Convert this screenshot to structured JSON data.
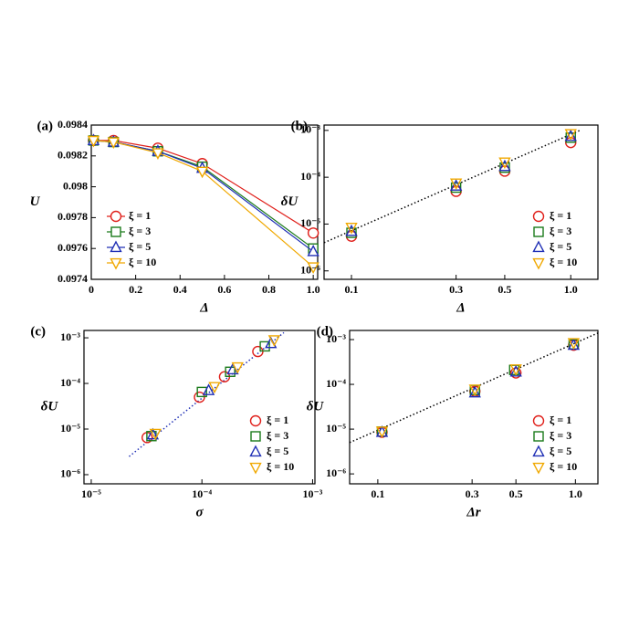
{
  "chart_data": [
    {
      "type": "line",
      "panel_label": "(a)",
      "xlabel": "Δ",
      "ylabel": "U",
      "x": [
        0.01,
        0.1,
        0.3,
        0.5,
        1.0
      ],
      "xlim": [
        0,
        1.02
      ],
      "xticks": [
        0,
        0.2,
        0.4,
        0.6,
        0.8,
        {
          "value": 1,
          "label": "1.0"
        }
      ],
      "ylim": [
        0.0974,
        0.0984
      ],
      "yticks": [
        0.0974,
        0.0976,
        0.0978,
        0.098,
        0.0982,
        0.0984
      ],
      "legend": "lower left",
      "series": [
        {
          "name": "ξ = 1",
          "color": "#e0201b",
          "marker": "circle",
          "values": [
            0.0983,
            0.0983,
            0.09825,
            0.09815,
            0.0977
          ]
        },
        {
          "name": "ξ = 3",
          "color": "#1b7a1b",
          "marker": "square",
          "values": [
            0.0983,
            0.09829,
            0.09823,
            0.09813,
            0.0976
          ]
        },
        {
          "name": "ξ = 5",
          "color": "#1f2fb5",
          "marker": "triangle-up",
          "values": [
            0.0983,
            0.09829,
            0.09823,
            0.09812,
            0.09758
          ]
        },
        {
          "name": "ξ = 10",
          "color": "#f0a800",
          "marker": "triangle-down",
          "values": [
            0.0983,
            0.09829,
            0.09822,
            0.0981,
            0.09748
          ]
        }
      ]
    },
    {
      "type": "scatter",
      "panel_label": "(b)",
      "xlabel": "Δ",
      "ylabel": "δU",
      "xlog": true,
      "ylog": true,
      "xlim": [
        0.075,
        1.33
      ],
      "xticks": [
        0.1,
        0.3,
        0.5,
        {
          "value": 1,
          "label": "1.0"
        }
      ],
      "ylim": [
        6.6e-07,
        0.0013
      ],
      "yticks": [
        {
          "value": 1e-06,
          "label": "10⁻⁶"
        },
        {
          "value": 1e-05,
          "label": "10⁻⁵"
        },
        {
          "value": 0.0001,
          "label": "10⁻⁴"
        },
        {
          "value": 0.001,
          "label": "10⁻³"
        }
      ],
      "legend": "lower right",
      "fit_line": {
        "color": "#000000",
        "x": [
          0.075,
          1.1
        ],
        "values": [
          4e-06,
          0.001
        ]
      },
      "series": [
        {
          "name": "ξ = 1",
          "color": "#e0201b",
          "marker": "circle",
          "x": [
            0.1,
            0.3,
            0.5,
            1.0
          ],
          "values": [
            5.5e-06,
            5e-05,
            0.000135,
            0.00055
          ]
        },
        {
          "name": "ξ = 3",
          "color": "#1b7a1b",
          "marker": "square",
          "x": [
            0.1,
            0.3,
            0.5,
            1.0
          ],
          "values": [
            6.5e-06,
            6e-05,
            0.00016,
            0.0007
          ]
        },
        {
          "name": "ξ = 5",
          "color": "#1f2fb5",
          "marker": "triangle-up",
          "x": [
            0.1,
            0.3,
            0.5,
            1.0
          ],
          "values": [
            7e-06,
            6.5e-05,
            0.00017,
            0.00075
          ]
        },
        {
          "name": "ξ = 10",
          "color": "#f0a800",
          "marker": "triangle-down",
          "x": [
            0.1,
            0.3,
            0.5,
            1.0
          ],
          "values": [
            8.5e-06,
            7.5e-05,
            0.00021,
            0.00085
          ]
        }
      ]
    },
    {
      "type": "scatter",
      "panel_label": "(c)",
      "xlabel": "σ",
      "ylabel": "δU",
      "xlog": true,
      "ylog": true,
      "xlim": [
        8.6e-06,
        0.00105
      ],
      "xticks": [
        {
          "value": 1e-05,
          "label": "10⁻⁵"
        },
        {
          "value": 0.0001,
          "label": "10⁻⁴"
        },
        {
          "value": 0.001,
          "label": "10⁻³"
        }
      ],
      "ylim": [
        6.3e-07,
        0.00145
      ],
      "yticks": [
        {
          "value": 1e-06,
          "label": "10⁻⁶"
        },
        {
          "value": 1e-05,
          "label": "10⁻⁵"
        },
        {
          "value": 0.0001,
          "label": "10⁻⁴"
        },
        {
          "value": 0.001,
          "label": "10⁻³"
        }
      ],
      "legend": "lower right",
      "fit_line": {
        "color": "#1f2fb5",
        "x": [
          2.2e-05,
          0.00055
        ],
        "values": [
          2.5e-06,
          0.0013
        ]
      },
      "series": [
        {
          "name": "ξ = 1",
          "color": "#e0201b",
          "marker": "circle",
          "x": [
            3.2e-05,
            9.5e-05,
            0.00016,
            0.00032
          ],
          "values": [
            6.5e-06,
            5e-05,
            0.00014,
            0.0005
          ]
        },
        {
          "name": "ξ = 3",
          "color": "#1b7a1b",
          "marker": "square",
          "x": [
            3.5e-05,
            0.0001,
            0.00018,
            0.00037
          ],
          "values": [
            7e-06,
            6.5e-05,
            0.00018,
            0.00065
          ]
        },
        {
          "name": "ξ = 5",
          "color": "#1f2fb5",
          "marker": "triangle-up",
          "x": [
            3.6e-05,
            0.000115,
            0.00019,
            0.00042
          ],
          "values": [
            7.5e-06,
            7e-05,
            0.0002,
            0.00075
          ]
        },
        {
          "name": "ξ = 10",
          "color": "#f0a800",
          "marker": "triangle-down",
          "x": [
            3.8e-05,
            0.00013,
            0.00021,
            0.00045
          ],
          "values": [
            8e-06,
            8.5e-05,
            0.00023,
            0.0009
          ]
        }
      ]
    },
    {
      "type": "scatter",
      "panel_label": "(d)",
      "xlabel": "Δr",
      "ylabel": "δU",
      "xlog": true,
      "ylog": true,
      "xlim": [
        0.072,
        1.3
      ],
      "xticks": [
        0.1,
        0.3,
        0.5,
        {
          "value": 1,
          "label": "1.0"
        }
      ],
      "ylim": [
        6e-07,
        0.0016
      ],
      "yticks": [
        {
          "value": 1e-06,
          "label": "10⁻⁶"
        },
        {
          "value": 1e-05,
          "label": "10⁻⁵"
        },
        {
          "value": 0.0001,
          "label": "10⁻⁴"
        },
        {
          "value": 0.001,
          "label": "10⁻³"
        }
      ],
      "legend": "lower right",
      "fit_line": {
        "color": "#000000",
        "x": [
          0.072,
          1.3
        ],
        "values": [
          5e-06,
          0.0014
        ]
      },
      "series": [
        {
          "name": "ξ = 1",
          "color": "#e0201b",
          "marker": "circle",
          "x": [
            0.105,
            0.31,
            0.5,
            0.98
          ],
          "values": [
            8.5e-06,
            7e-05,
            0.00018,
            0.00075
          ]
        },
        {
          "name": "ξ = 3",
          "color": "#1b7a1b",
          "marker": "square",
          "x": [
            0.105,
            0.31,
            0.49,
            0.98
          ],
          "values": [
            8.8e-06,
            7.5e-05,
            0.00021,
            0.00078
          ]
        },
        {
          "name": "ξ = 5",
          "color": "#1f2fb5",
          "marker": "triangle-up",
          "x": [
            0.105,
            0.31,
            0.5,
            0.98
          ],
          "values": [
            8.5e-06,
            6.5e-05,
            0.00019,
            0.00075
          ]
        },
        {
          "name": "ξ = 10",
          "color": "#f0a800",
          "marker": "triangle-down",
          "x": [
            0.105,
            0.31,
            0.5,
            0.98
          ],
          "values": [
            9e-06,
            7.8e-05,
            0.00022,
            0.00085
          ]
        }
      ]
    }
  ]
}
